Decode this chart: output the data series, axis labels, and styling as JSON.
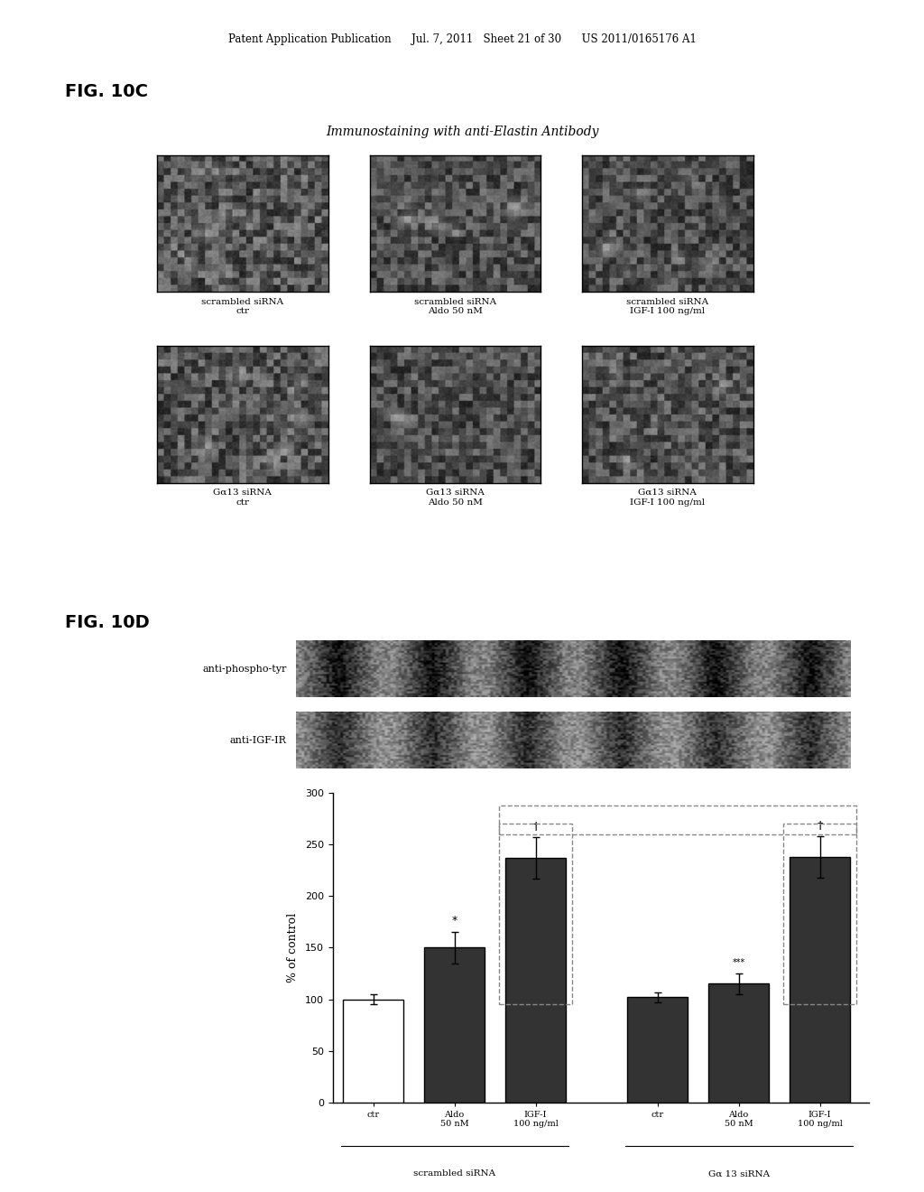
{
  "page_header": "Patent Application Publication      Jul. 7, 2011   Sheet 21 of 30      US 2011/0165176 A1",
  "fig10c_label": "FIG. 10C",
  "fig10c_title": "Immunostaining with anti-Elastin Antibody",
  "fig10c_captions": [
    [
      "scrambled siRNA\nctr",
      "scrambled siRNA\nAldo 50 nM",
      "scrambled siRNA\nIGF-I 100 ng/ml"
    ],
    [
      "Gα13 siRNA\nctr",
      "Gα13 siRNA\nAldo 50 nM",
      "Gα13 siRNA\nIGF-I 100 ng/ml"
    ]
  ],
  "fig10d_label": "FIG. 10D",
  "wb_label1": "anti-phospho-tyr",
  "wb_label2": "anti-IGF-IR",
  "bar_values": [
    100,
    150,
    237,
    102,
    115,
    238
  ],
  "bar_errors": [
    5,
    15,
    20,
    5,
    10,
    20
  ],
  "bar_colors": [
    "white",
    "#333333",
    "#333333",
    "#333333",
    "#333333",
    "#333333"
  ],
  "bar_edge_colors": [
    "black",
    "black",
    "black",
    "black",
    "black",
    "black"
  ],
  "x_labels": [
    "ctr",
    "Aldo\n50 nM",
    "IGF-I\n100 ng/ml",
    "ctr",
    "Aldo\n50 nM",
    "IGF-I\n100 ng/ml"
  ],
  "group_labels": [
    "scrambled siRNA",
    "Gα 13 siRNA"
  ],
  "ylabel": "% of control",
  "ylim": [
    0,
    300
  ],
  "yticks": [
    0,
    50,
    100,
    150,
    200,
    250,
    300
  ],
  "background_color": "#ffffff",
  "text_color": "#000000",
  "dashed_box_color": "#888888"
}
